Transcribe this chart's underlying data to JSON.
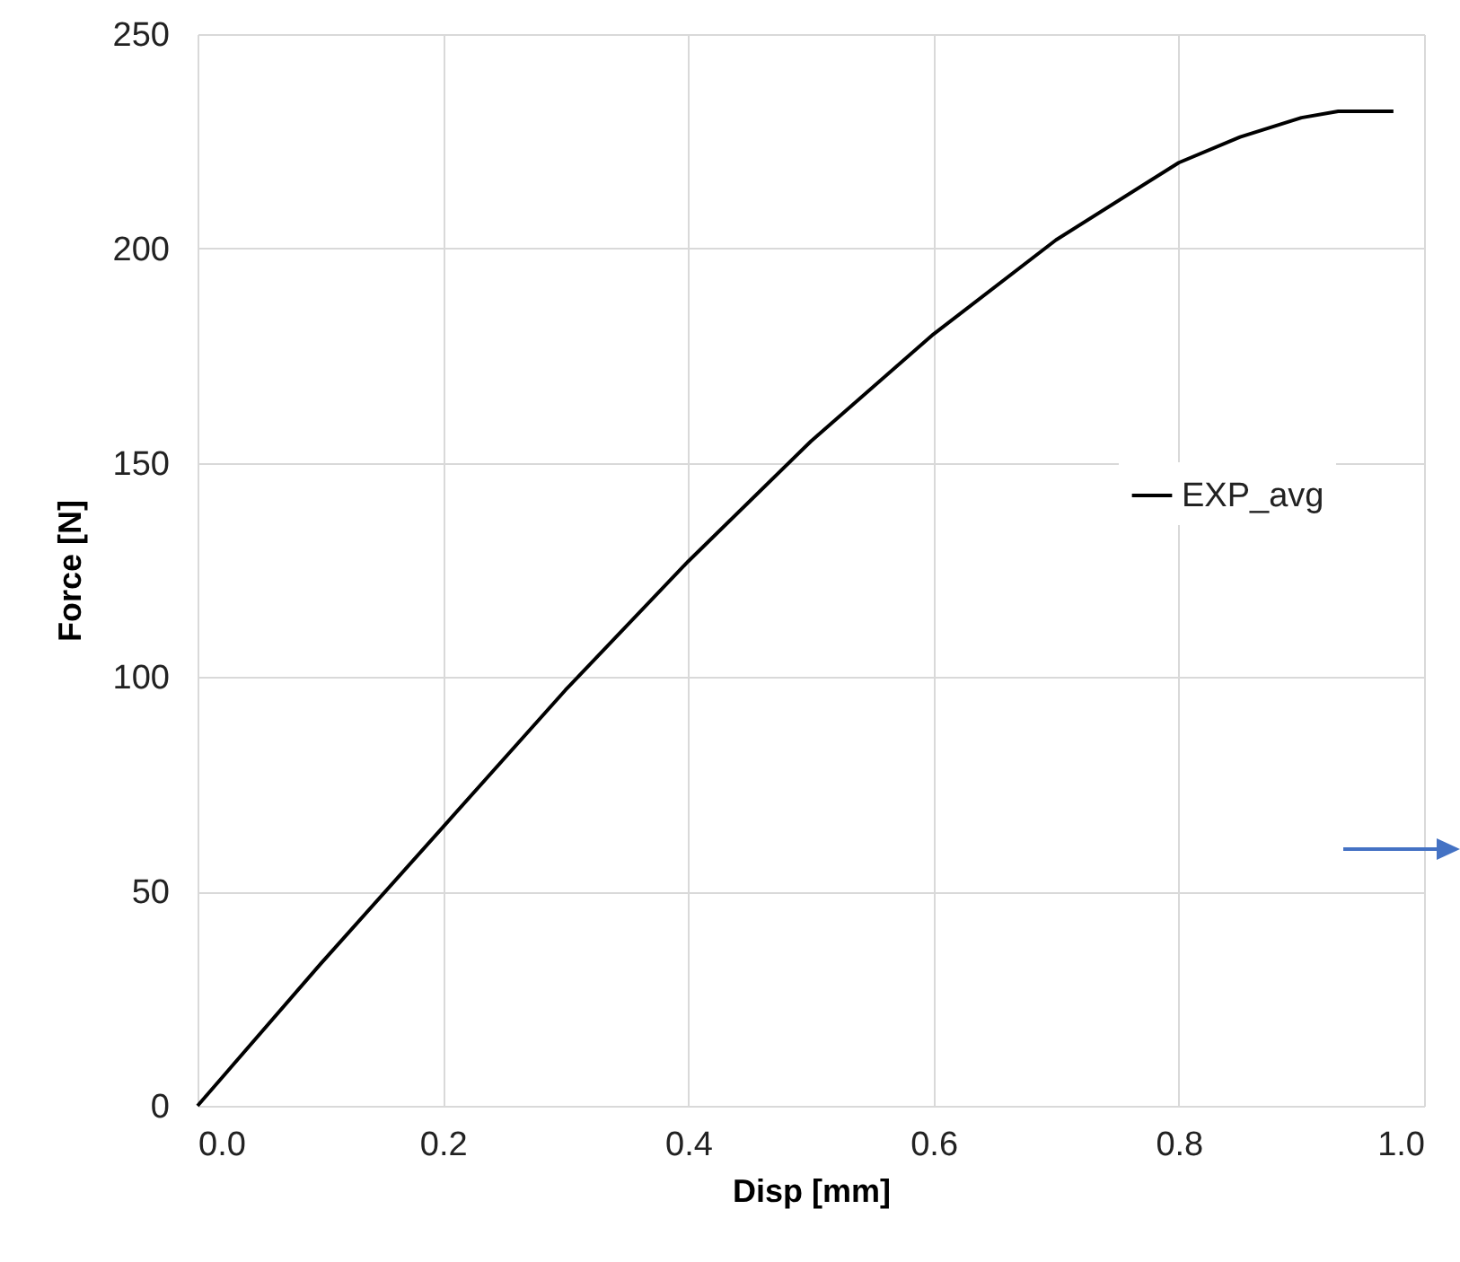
{
  "chart_data": {
    "type": "line",
    "xlabel": "Disp [mm]",
    "ylabel": "Force [N]",
    "series": [
      {
        "name": "EXP_avg",
        "color": "#000000",
        "x": [
          0,
          0.1,
          0.2,
          0.3,
          0.4,
          0.5,
          0.6,
          0.7,
          0.8,
          0.85,
          0.9,
          0.93,
          0.975
        ],
        "values": [
          0,
          33,
          65,
          97,
          127,
          155,
          180,
          202,
          220,
          226,
          230.5,
          232,
          232
        ]
      }
    ],
    "xlim": [
      0,
      1
    ],
    "xticks": [
      {
        "value": 0,
        "label": "0.0"
      },
      0.2,
      0.4,
      0.6,
      0.8,
      {
        "value": 1,
        "label": "1.0"
      }
    ],
    "ylim": [
      0,
      250
    ],
    "yticks": [
      0,
      50,
      100,
      150,
      200,
      250
    ],
    "grid": true,
    "legend": "right",
    "marker": "none",
    "line_style": "solid"
  }
}
